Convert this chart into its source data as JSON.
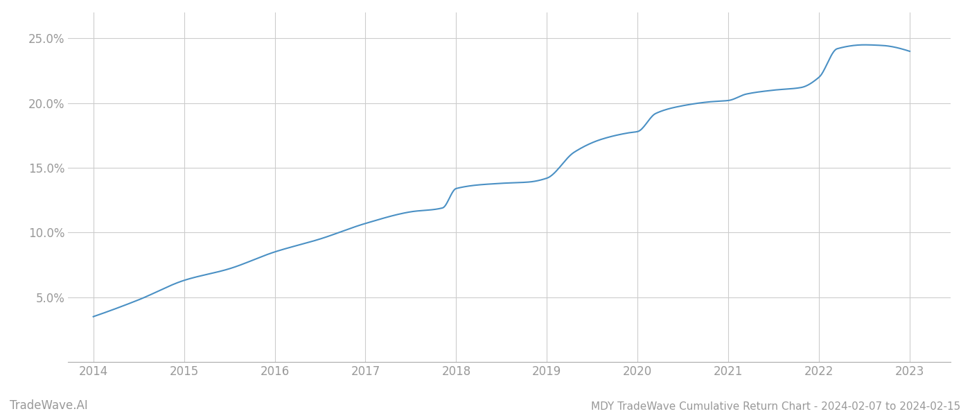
{
  "title": "MDY TradeWave Cumulative Return Chart - 2024-02-07 to 2024-02-15",
  "watermark": "TradeWave.AI",
  "line_color": "#4a90c4",
  "background_color": "#ffffff",
  "grid_color": "#cccccc",
  "x_years": [
    2014,
    2015,
    2016,
    2017,
    2018,
    2019,
    2020,
    2021,
    2022,
    2023
  ],
  "key_x": [
    2014.0,
    2014.5,
    2015.0,
    2015.5,
    2016.0,
    2016.5,
    2017.0,
    2017.5,
    2017.85,
    2018.0,
    2018.5,
    2018.8,
    2019.0,
    2019.3,
    2019.6,
    2019.9,
    2020.0,
    2020.2,
    2020.5,
    2020.8,
    2021.0,
    2021.2,
    2021.5,
    2021.8,
    2022.0,
    2022.2,
    2022.5,
    2022.7,
    2023.0
  ],
  "key_y": [
    3.5,
    4.8,
    6.3,
    7.2,
    8.5,
    9.5,
    10.7,
    11.6,
    11.9,
    13.4,
    13.8,
    13.9,
    14.2,
    16.2,
    17.2,
    17.7,
    17.8,
    19.2,
    19.8,
    20.1,
    20.2,
    20.7,
    21.0,
    21.2,
    22.0,
    24.2,
    24.5,
    24.45,
    24.0
  ],
  "ylim": [
    0,
    27
  ],
  "yticks": [
    5.0,
    10.0,
    15.0,
    20.0,
    25.0
  ],
  "tick_color": "#999999",
  "tick_fontsize": 12,
  "title_fontsize": 11,
  "watermark_fontsize": 12,
  "line_width": 1.5
}
